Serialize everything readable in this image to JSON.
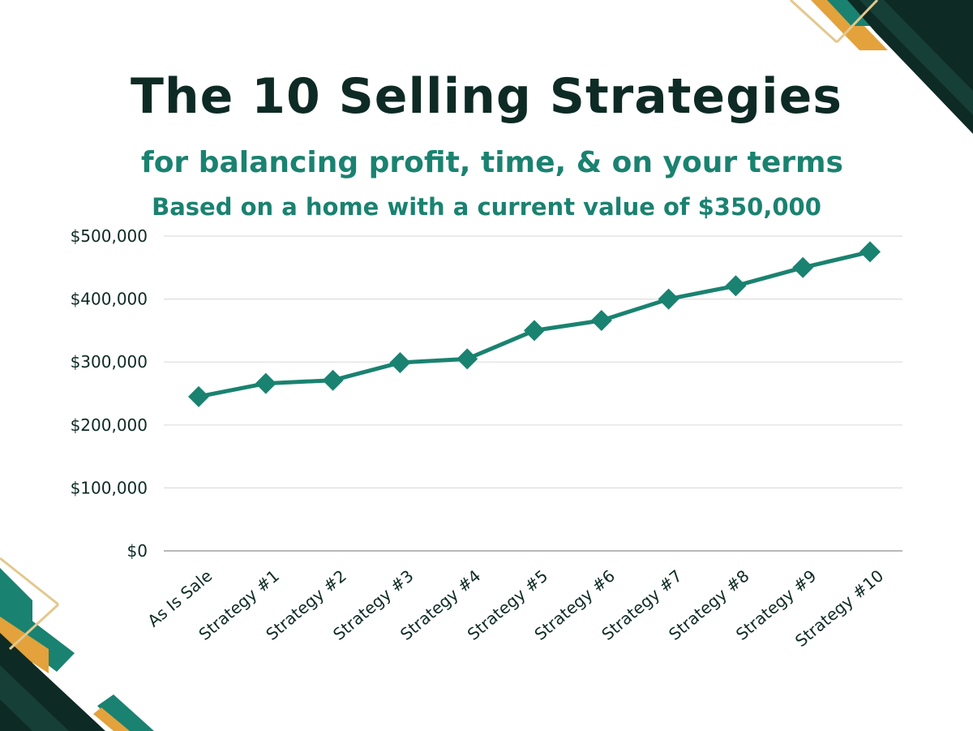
{
  "header": {
    "title": "The 10 Selling Strategies",
    "subtitle": "for balancing profit, time, & on your terms",
    "note": "Based on a home with a current value of $350,000"
  },
  "colors": {
    "line": "#1a8270",
    "marker": "#1a8270",
    "dark_green": "#0e2a24",
    "teal": "#1a8270",
    "gold": "#e3a23c"
  },
  "chart_data": {
    "type": "line",
    "categories": [
      "As Is Sale",
      "Strategy #1",
      "Strategy #2",
      "Strategy #3",
      "Strategy #4",
      "Strategy #5",
      "Strategy #6",
      "Strategy #7",
      "Strategy #8",
      "Strategy #9",
      "Strategy #10"
    ],
    "series": [
      {
        "values": [
          245000,
          266000,
          271000,
          299000,
          305000,
          350000,
          366000,
          400000,
          421000,
          450000,
          475000
        ],
        "marker": "diamond"
      }
    ],
    "ylim": [
      0,
      500000
    ],
    "yticks": [
      0,
      100000,
      200000,
      300000,
      400000,
      500000
    ],
    "ytick_labels": [
      "$0",
      "$100,000",
      "$200,000",
      "$300,000",
      "$400,000",
      "$500,000"
    ],
    "grid": true,
    "legend": "none",
    "xlabel": "",
    "ylabel": ""
  }
}
